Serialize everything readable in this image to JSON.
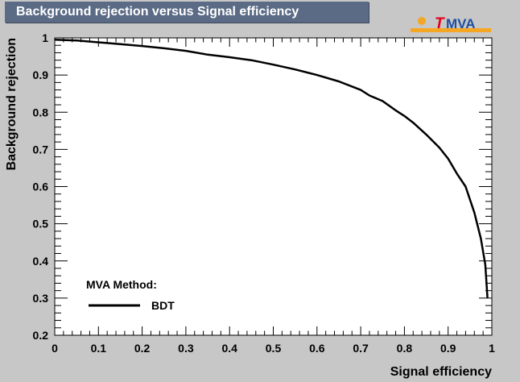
{
  "header": {
    "title": "Background rejection versus Signal efficiency"
  },
  "logo": {
    "text": "TMVA",
    "colors": {
      "accent": "#f5a623",
      "t": "#e3001b",
      "mva": "#1f4fa0"
    }
  },
  "chart_data": {
    "type": "line",
    "title": "Background rejection versus Signal efficiency",
    "xlabel": "Signal efficiency",
    "ylabel": "Background rejection",
    "xlim": [
      0,
      1
    ],
    "ylim": [
      0.2,
      1
    ],
    "x_ticks": [
      "0",
      "0.1",
      "0.2",
      "0.3",
      "0.4",
      "0.5",
      "0.6",
      "0.7",
      "0.8",
      "0.9",
      "1"
    ],
    "y_ticks": [
      "0.2",
      "0.3",
      "0.4",
      "0.5",
      "0.6",
      "0.7",
      "0.8",
      "0.9",
      "1"
    ],
    "legend": {
      "header": "MVA Method:",
      "placement": "bottom-left"
    },
    "series": [
      {
        "name": "BDT",
        "color": "#000000",
        "x": [
          0,
          0.05,
          0.1,
          0.15,
          0.2,
          0.25,
          0.3,
          0.35,
          0.4,
          0.45,
          0.5,
          0.55,
          0.6,
          0.65,
          0.7,
          0.72,
          0.75,
          0.78,
          0.8,
          0.82,
          0.85,
          0.88,
          0.9,
          0.92,
          0.94,
          0.96,
          0.975,
          0.985,
          0.99
        ],
        "y": [
          0.995,
          0.993,
          0.988,
          0.983,
          0.978,
          0.972,
          0.965,
          0.955,
          0.948,
          0.94,
          0.928,
          0.915,
          0.9,
          0.883,
          0.86,
          0.845,
          0.83,
          0.805,
          0.79,
          0.772,
          0.74,
          0.705,
          0.675,
          0.635,
          0.6,
          0.53,
          0.46,
          0.39,
          0.3
        ]
      }
    ]
  }
}
